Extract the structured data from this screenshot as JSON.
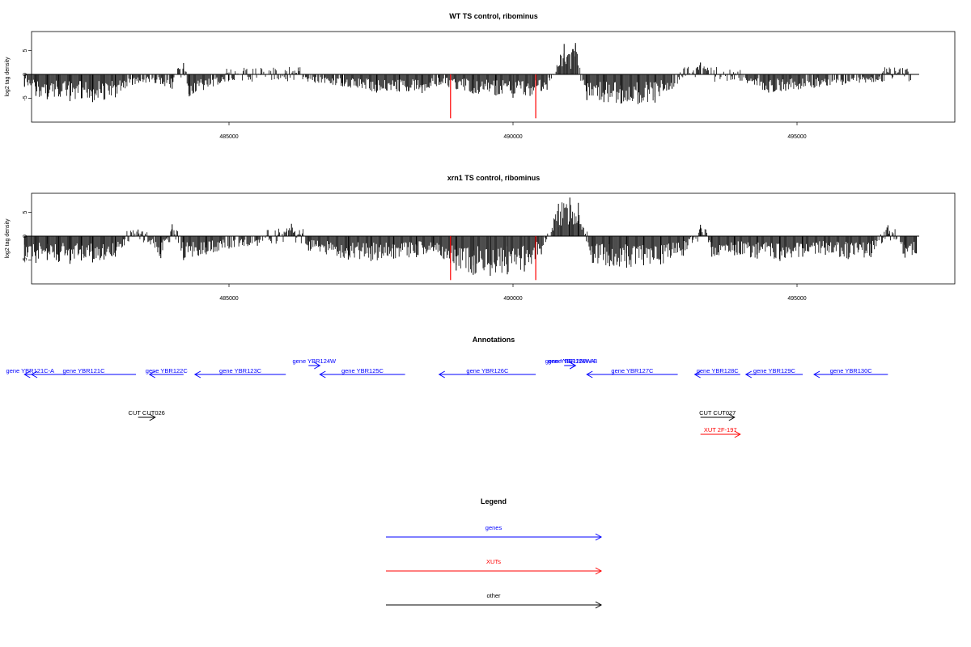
{
  "chart_data": [
    {
      "type": "bar",
      "title": "WT TS control, ribominus",
      "xlabel": "",
      "ylabel": "log2 tag density",
      "xlim": [
        481300,
        497700
      ],
      "ylim": [
        -10,
        9
      ],
      "xticks": [
        485000,
        490000,
        495000
      ],
      "xtick_labels": [
        "485000",
        "490000",
        "495000"
      ],
      "yticks": [
        -5,
        0,
        5
      ],
      "ytick_labels": [
        "-5",
        "0",
        "5"
      ],
      "baseline": 0,
      "series": [
        {
          "values": [
            {
              "x": 481400,
              "y": -2.6
            },
            {
              "x": 481600,
              "y": -4.5
            },
            {
              "x": 481800,
              "y": -5.2
            },
            {
              "x": 482000,
              "y": -4.6
            },
            {
              "x": 482200,
              "y": -5.6
            },
            {
              "x": 482400,
              "y": -5.0
            },
            {
              "x": 482600,
              "y": -5.8
            },
            {
              "x": 482800,
              "y": -5.3
            },
            {
              "x": 483000,
              "y": -4.8
            },
            {
              "x": 483300,
              "y": -2.2
            },
            {
              "x": 483700,
              "y": -1.8
            },
            {
              "x": 484000,
              "y": -3.0
            },
            {
              "x": 484200,
              "y": 2.4
            },
            {
              "x": 484300,
              "y": -4.6
            },
            {
              "x": 485000,
              "y": -1.2
            },
            {
              "x": 486000,
              "y": -1.0
            },
            {
              "x": 487000,
              "y": -2.5
            },
            {
              "x": 487600,
              "y": -3.8
            },
            {
              "x": 488000,
              "y": -3.6
            },
            {
              "x": 488400,
              "y": -3.9
            },
            {
              "x": 488700,
              "y": -2.2
            },
            {
              "x": 489300,
              "y": -4.0
            },
            {
              "x": 489700,
              "y": -4.4
            },
            {
              "x": 490000,
              "y": -4.9
            },
            {
              "x": 490300,
              "y": -4.5
            },
            {
              "x": 490600,
              "y": -3.2
            },
            {
              "x": 490900,
              "y": 6.4
            },
            {
              "x": 491000,
              "y": 4.2
            },
            {
              "x": 491100,
              "y": 6.6
            },
            {
              "x": 491300,
              "y": -5.4
            },
            {
              "x": 491600,
              "y": -5.8
            },
            {
              "x": 491900,
              "y": -6.1
            },
            {
              "x": 492200,
              "y": -6.2
            },
            {
              "x": 492500,
              "y": -5.9
            },
            {
              "x": 492800,
              "y": -3.0
            },
            {
              "x": 493300,
              "y": 2.5
            },
            {
              "x": 494000,
              "y": -1.3
            },
            {
              "x": 494500,
              "y": -3.8
            },
            {
              "x": 494800,
              "y": -3.4
            },
            {
              "x": 495300,
              "y": -2.8
            },
            {
              "x": 495800,
              "y": -2.2
            },
            {
              "x": 496500,
              "y": -1.5
            },
            {
              "x": 497000,
              "y": -1.2
            }
          ]
        }
      ],
      "markers": [
        {
          "x": 488900,
          "y": -9.2,
          "color": "#ff0000"
        },
        {
          "x": 490400,
          "y": -9.2,
          "color": "#ff0000"
        }
      ]
    },
    {
      "type": "bar",
      "title": "xrn1 TS control, ribominus",
      "xlabel": "",
      "ylabel": "log2 tag density",
      "xlim": [
        481300,
        497700
      ],
      "ylim": [
        -10,
        9
      ],
      "xticks": [
        485000,
        490000,
        495000
      ],
      "xtick_labels": [
        "485000",
        "490000",
        "495000"
      ],
      "yticks": [
        -5,
        0,
        5
      ],
      "ytick_labels": [
        "-5",
        "0",
        "5"
      ],
      "baseline": 0,
      "series": [
        {
          "values": [
            {
              "x": 481400,
              "y": -5.2
            },
            {
              "x": 481600,
              "y": -5.6
            },
            {
              "x": 481800,
              "y": -5.0
            },
            {
              "x": 482000,
              "y": -5.4
            },
            {
              "x": 482200,
              "y": -5.8
            },
            {
              "x": 482400,
              "y": -5.1
            },
            {
              "x": 482600,
              "y": -5.5
            },
            {
              "x": 482800,
              "y": -4.9
            },
            {
              "x": 483000,
              "y": -4.3
            },
            {
              "x": 483400,
              "y": 1.4
            },
            {
              "x": 483800,
              "y": -4.6
            },
            {
              "x": 484000,
              "y": 2.5
            },
            {
              "x": 484200,
              "y": -5.0
            },
            {
              "x": 484600,
              "y": -3.8
            },
            {
              "x": 485000,
              "y": -2.6
            },
            {
              "x": 485500,
              "y": -2.0
            },
            {
              "x": 486100,
              "y": 2.6
            },
            {
              "x": 486400,
              "y": -3.0
            },
            {
              "x": 487100,
              "y": -4.9
            },
            {
              "x": 487500,
              "y": -5.2
            },
            {
              "x": 487900,
              "y": -4.7
            },
            {
              "x": 488300,
              "y": -4.4
            },
            {
              "x": 488600,
              "y": -3.1
            },
            {
              "x": 489000,
              "y": -7.2
            },
            {
              "x": 489300,
              "y": -8.1
            },
            {
              "x": 489600,
              "y": -8.3
            },
            {
              "x": 489900,
              "y": -8.0
            },
            {
              "x": 490200,
              "y": -7.4
            },
            {
              "x": 490500,
              "y": -3.8
            },
            {
              "x": 490800,
              "y": 6.8
            },
            {
              "x": 491000,
              "y": 8.1
            },
            {
              "x": 491150,
              "y": 7.0
            },
            {
              "x": 491400,
              "y": -5.6
            },
            {
              "x": 491700,
              "y": -6.3
            },
            {
              "x": 492000,
              "y": -6.6
            },
            {
              "x": 492300,
              "y": -6.1
            },
            {
              "x": 492600,
              "y": -5.9
            },
            {
              "x": 493000,
              "y": -4.1
            },
            {
              "x": 493300,
              "y": 2.4
            },
            {
              "x": 493500,
              "y": -4.3
            },
            {
              "x": 493900,
              "y": -4.0
            },
            {
              "x": 494300,
              "y": -4.7
            },
            {
              "x": 494700,
              "y": -5.2
            },
            {
              "x": 495100,
              "y": -4.3
            },
            {
              "x": 495500,
              "y": -3.9
            },
            {
              "x": 495900,
              "y": -4.8
            },
            {
              "x": 496300,
              "y": -4.4
            },
            {
              "x": 496600,
              "y": 2.3
            },
            {
              "x": 496900,
              "y": -4.5
            },
            {
              "x": 497100,
              "y": -3.6
            }
          ]
        }
      ],
      "markers": [
        {
          "x": 488900,
          "y": -9.2,
          "color": "#ff0000"
        },
        {
          "x": 490400,
          "y": -9.2,
          "color": "#ff0000"
        }
      ]
    }
  ],
  "annotations": {
    "title": "Annotations",
    "features": [
      {
        "label": "gene YBR121C-A",
        "start": 481400,
        "end": 481600,
        "strand": "-",
        "color": "#0000ff",
        "row": 1,
        "overlap": true
      },
      {
        "label": "gene YBR121C",
        "start": 481300,
        "end": 483100,
        "strand": "-",
        "color": "#0000ff",
        "row": 1
      },
      {
        "label": "gene YBR122C",
        "start": 483600,
        "end": 484200,
        "strand": "-",
        "color": "#0000ff",
        "row": 1
      },
      {
        "label": "gene YBR123C",
        "start": 484400,
        "end": 486000,
        "strand": "-",
        "color": "#0000ff",
        "row": 1
      },
      {
        "label": "gene YBR124W",
        "start": 486400,
        "end": 486600,
        "strand": "+",
        "color": "#0000ff",
        "row": 0
      },
      {
        "label": "gene YBR125C",
        "start": 486600,
        "end": 488100,
        "strand": "-",
        "color": "#0000ff",
        "row": 1
      },
      {
        "label": "gene YBR126C",
        "start": 488700,
        "end": 490400,
        "strand": "-",
        "color": "#0000ff",
        "row": 1
      },
      {
        "label": "gene YBR126W-A",
        "start": 490900,
        "end": 491100,
        "strand": "+",
        "color": "#0000ff",
        "row": 0,
        "overlap": true
      },
      {
        "label": "gene YBR126W-B",
        "start": 491000,
        "end": 491100,
        "strand": "+",
        "color": "#0000ff",
        "row": 0
      },
      {
        "label": "gene YBR127C",
        "start": 491300,
        "end": 492900,
        "strand": "-",
        "color": "#0000ff",
        "row": 1
      },
      {
        "label": "gene YBR128C",
        "start": 493200,
        "end": 494000,
        "strand": "-",
        "color": "#0000ff",
        "row": 1
      },
      {
        "label": "gene YBR129C",
        "start": 494100,
        "end": 495100,
        "strand": "-",
        "color": "#0000ff",
        "row": 1
      },
      {
        "label": "gene YBR130C",
        "start": 495300,
        "end": 496600,
        "strand": "-",
        "color": "#0000ff",
        "row": 1
      },
      {
        "label": "CUT CUT026",
        "start": 483400,
        "end": 483700,
        "strand": "+",
        "color": "#000000",
        "row": 2
      },
      {
        "label": "CUT CUT027",
        "start": 493300,
        "end": 493900,
        "strand": "+",
        "color": "#000000",
        "row": 2
      },
      {
        "label": "XUT 2F-197",
        "start": 493300,
        "end": 494000,
        "strand": "+",
        "color": "#ff0000",
        "row": 3
      }
    ]
  },
  "legend": {
    "title": "Legend",
    "items": [
      {
        "label": "genes",
        "color": "#0000ff"
      },
      {
        "label": "XUTs",
        "color": "#ff0000"
      },
      {
        "label": "other",
        "color": "#000000"
      }
    ]
  }
}
